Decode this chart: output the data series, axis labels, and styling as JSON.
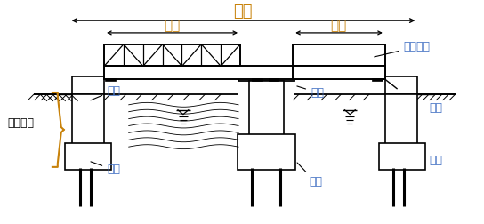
{
  "title": "桥长",
  "span1_label": "跨径",
  "span2_label": "跨径",
  "upper_label": "上部结构",
  "lower_label": "下部结构",
  "pier_label": "桥墩",
  "abutment_left_label": "桥台",
  "abutment_right_label": "桥台",
  "foundation_left_label": "基础",
  "foundation_center_label": "基础",
  "foundation_right_label": "基础",
  "black": "#000000",
  "orange": "#c8820a",
  "blue": "#4472c4",
  "bg": "#ffffff",
  "fig_width": 5.44,
  "fig_height": 2.52,
  "dpi": 100
}
